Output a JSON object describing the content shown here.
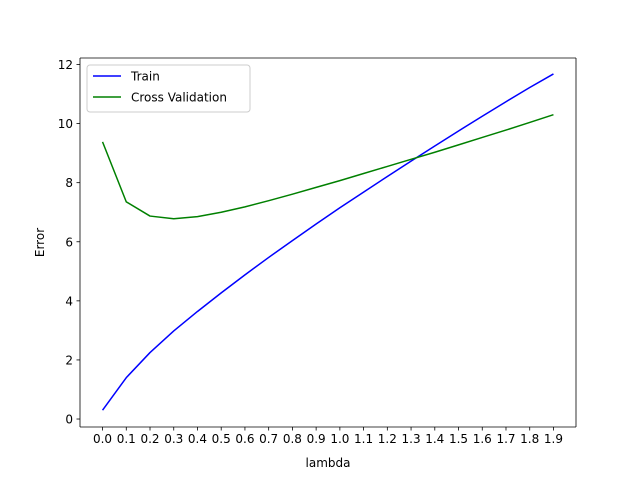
{
  "chart_data": {
    "type": "line",
    "title": "",
    "xlabel": "lambda",
    "ylabel": "Error",
    "x": [
      0.0,
      0.1,
      0.2,
      0.3,
      0.4,
      0.5,
      0.6,
      0.7,
      0.8,
      0.9,
      1.0,
      1.1,
      1.2,
      1.3,
      1.4,
      1.5,
      1.6,
      1.7,
      1.8,
      1.9
    ],
    "xtick_labels": [
      "0.0",
      "0.1",
      "0.2",
      "0.3",
      "0.4",
      "0.5",
      "0.6",
      "0.7",
      "0.8",
      "0.9",
      "1.0",
      "1.1",
      "1.2",
      "1.3",
      "1.4",
      "1.5",
      "1.6",
      "1.7",
      "1.8",
      "1.9"
    ],
    "xlim": [
      -0.095,
      1.995
    ],
    "ylim": [
      -0.27,
      12.22
    ],
    "yticks": [
      0,
      2,
      4,
      6,
      8,
      10,
      12
    ],
    "ytick_labels": [
      "0",
      "2",
      "4",
      "6",
      "8",
      "10",
      "12"
    ],
    "grid": false,
    "legend_position": "top-left",
    "series": [
      {
        "name": "Train",
        "color": "#0000ff",
        "values": [
          0.3,
          1.4,
          2.25,
          2.98,
          3.64,
          4.27,
          4.88,
          5.47,
          6.04,
          6.6,
          7.15,
          7.68,
          8.21,
          8.73,
          9.24,
          9.75,
          10.25,
          10.74,
          11.22,
          11.68
        ]
      },
      {
        "name": "Cross Validation",
        "color": "#008000",
        "values": [
          9.38,
          7.35,
          6.87,
          6.78,
          6.85,
          7.0,
          7.18,
          7.39,
          7.61,
          7.84,
          8.07,
          8.31,
          8.55,
          8.79,
          9.03,
          9.28,
          9.53,
          9.78,
          10.04,
          10.3
        ]
      }
    ]
  }
}
